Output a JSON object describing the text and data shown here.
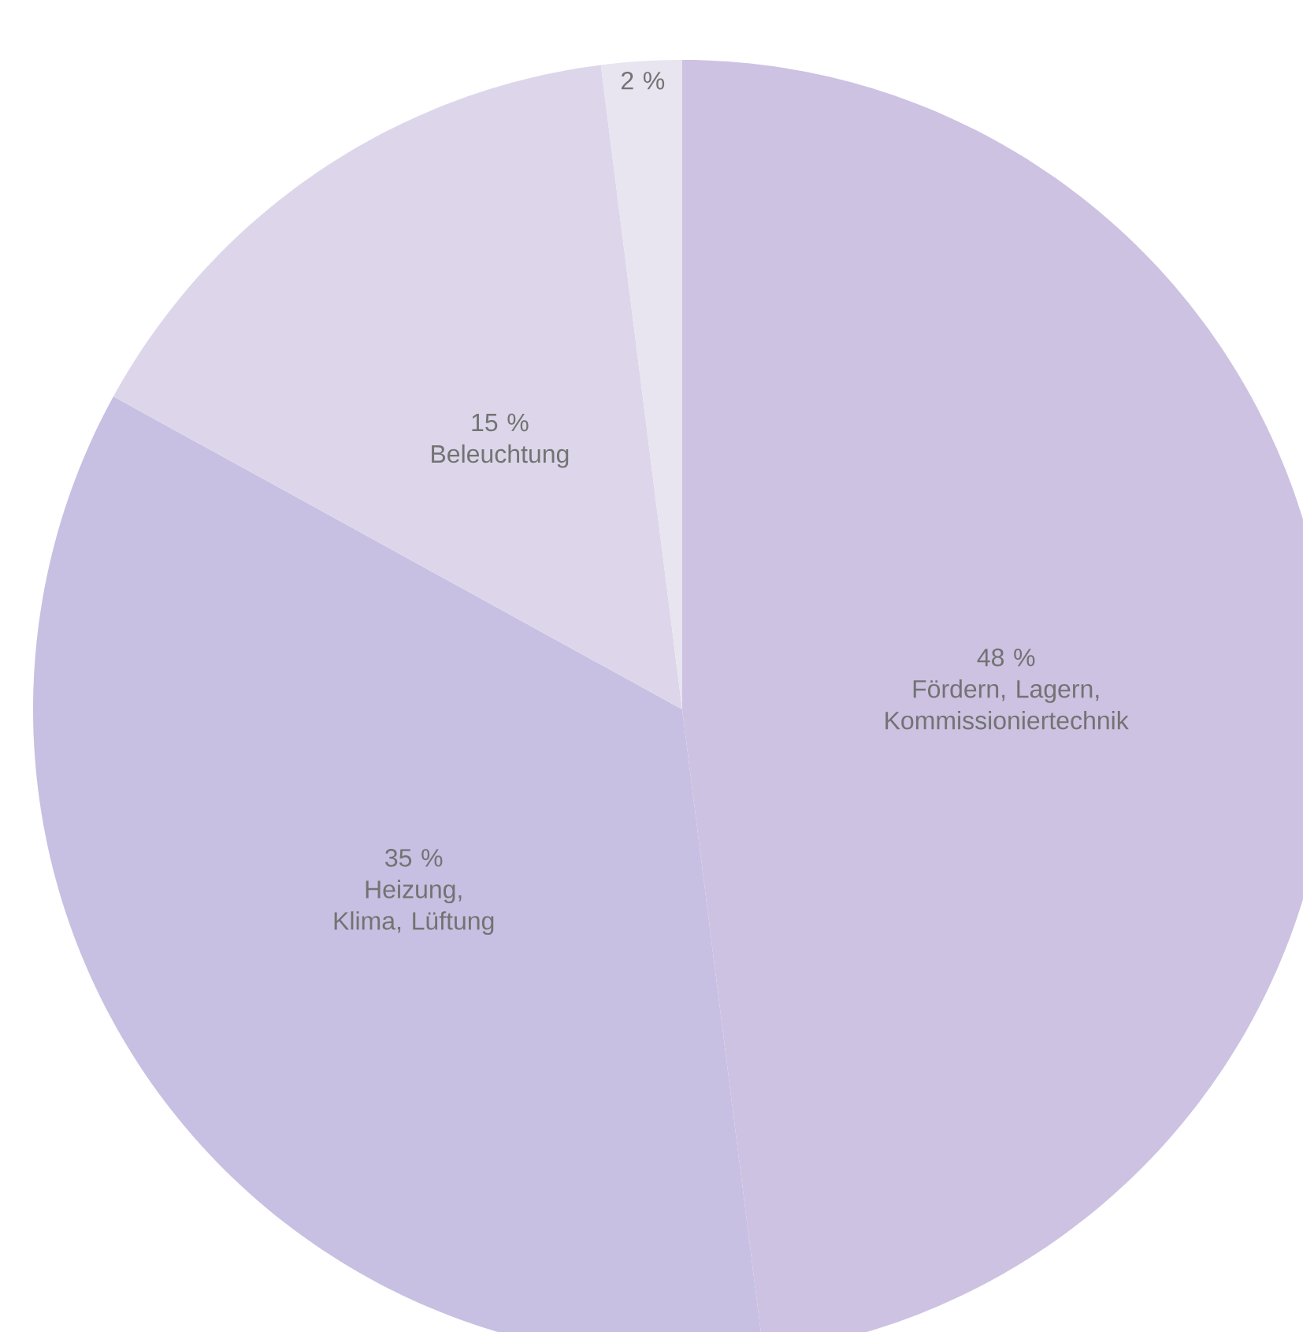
{
  "chart_data": {
    "type": "pie",
    "categories": [
      "Fördern, Lagern, Kommissioniertechnik",
      "Heizung, Klima, Lüftung",
      "Beleuchtung",
      null
    ],
    "values": [
      48,
      35,
      15,
      2
    ],
    "value_labels": [
      "48 %",
      "35 %",
      "15 %",
      "2 %"
    ],
    "colors": [
      "#cdc2e2",
      "#c7c0e2",
      "#ddd6ea",
      "#e8e4f0"
    ]
  }
}
